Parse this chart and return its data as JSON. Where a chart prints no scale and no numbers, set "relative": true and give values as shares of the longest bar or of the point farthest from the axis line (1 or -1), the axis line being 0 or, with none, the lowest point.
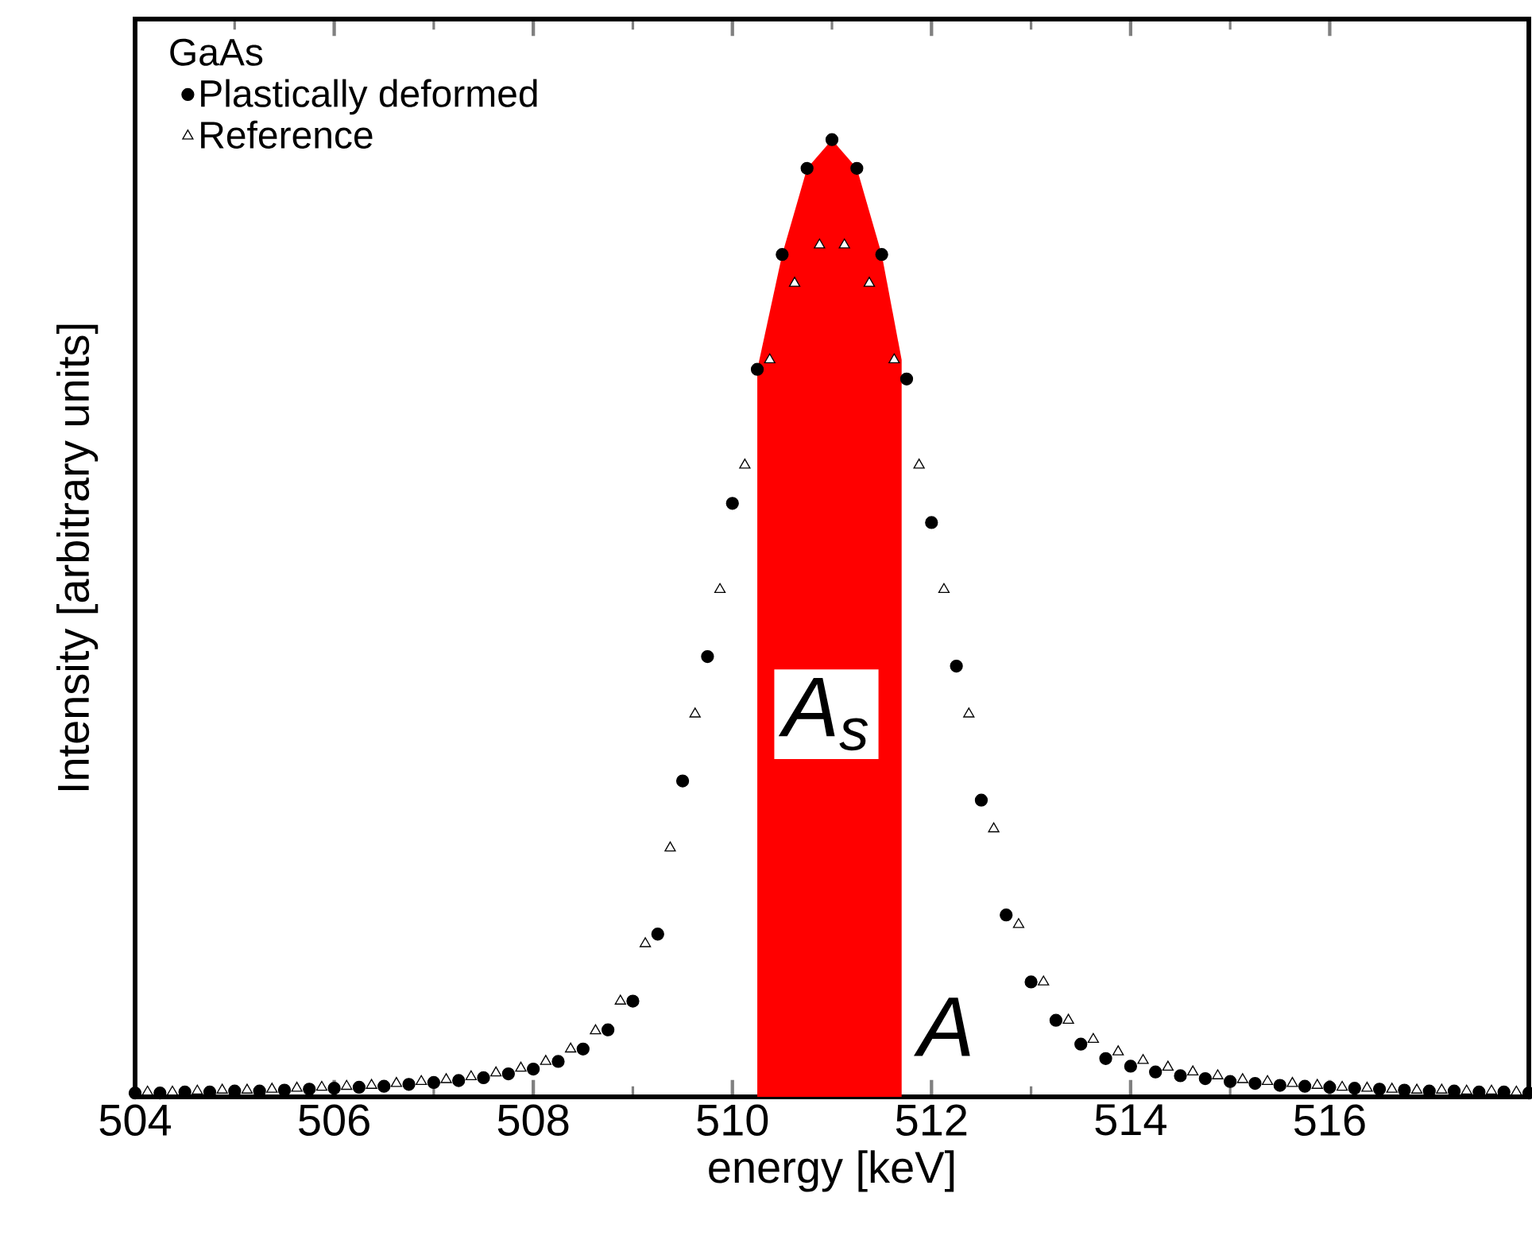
{
  "chart_data": {
    "type": "scatter",
    "xlabel": "energy [keV]",
    "ylabel": "Intensity [arbitrary units]",
    "relative": true,
    "xlim": [
      504,
      518
    ],
    "xticks": [
      504,
      506,
      508,
      510,
      512,
      514,
      516
    ],
    "legend": "top left",
    "legend_title": "GaAs",
    "series": [
      {
        "type": "area",
        "color": "#ff0000",
        "x": [
          510.25,
          510.5,
          510.75,
          511,
          511.25,
          511.5,
          511.7
        ],
        "values": [
          0.76,
          0.88,
          0.97,
          1.0,
          0.97,
          0.88,
          0.77
        ]
      },
      {
        "name": "Plastically deformed",
        "color": "#000000",
        "marker": "circle",
        "x": [
          504,
          504.25,
          504.5,
          504.75,
          505,
          505.25,
          505.5,
          505.75,
          506,
          506.25,
          506.5,
          506.75,
          507,
          507.25,
          507.5,
          507.75,
          508,
          508.25,
          508.5,
          508.75,
          509,
          509.25,
          509.5,
          509.75,
          510,
          510.25,
          510.5,
          510.75,
          511,
          511.25,
          511.5,
          511.75,
          512,
          512.25,
          512.5,
          512.75,
          513,
          513.25,
          513.5,
          513.75,
          514,
          514.25,
          514.5,
          514.75,
          515,
          515.25,
          515.5,
          515.75,
          516,
          516.25,
          516.5,
          516.75,
          517,
          517.25,
          517.5,
          517.75,
          518
        ],
        "values": [
          0.004,
          0.004,
          0.005,
          0.005,
          0.006,
          0.006,
          0.007,
          0.008,
          0.009,
          0.01,
          0.011,
          0.013,
          0.015,
          0.017,
          0.02,
          0.024,
          0.029,
          0.037,
          0.05,
          0.07,
          0.1,
          0.17,
          0.33,
          0.46,
          0.62,
          0.76,
          0.88,
          0.97,
          1.0,
          0.97,
          0.88,
          0.75,
          0.6,
          0.45,
          0.31,
          0.19,
          0.12,
          0.08,
          0.055,
          0.04,
          0.032,
          0.026,
          0.022,
          0.019,
          0.016,
          0.014,
          0.012,
          0.011,
          0.01,
          0.009,
          0.008,
          0.007,
          0.006,
          0.006,
          0.005,
          0.005,
          0.004
        ]
      },
      {
        "name": "Reference",
        "color": "#ffffff",
        "marker": "triangle",
        "x": [
          504.125,
          504.375,
          504.625,
          504.875,
          505.125,
          505.375,
          505.625,
          505.875,
          506.125,
          506.375,
          506.625,
          506.875,
          507.125,
          507.375,
          507.625,
          507.875,
          508.125,
          508.375,
          508.625,
          508.875,
          509.125,
          509.375,
          509.625,
          509.875,
          510.125,
          510.375,
          510.625,
          510.875,
          511.125,
          511.375,
          511.625,
          511.875,
          512.125,
          512.375,
          512.625,
          512.875,
          513.125,
          513.375,
          513.625,
          513.875,
          514.125,
          514.375,
          514.625,
          514.875,
          515.125,
          515.375,
          515.625,
          515.875,
          516.125,
          516.375,
          516.625,
          516.875,
          517.125,
          517.375,
          517.625,
          517.875
        ],
        "values": [
          0.005,
          0.005,
          0.006,
          0.007,
          0.007,
          0.008,
          0.009,
          0.01,
          0.011,
          0.012,
          0.014,
          0.016,
          0.018,
          0.021,
          0.025,
          0.03,
          0.037,
          0.05,
          0.069,
          0.1,
          0.16,
          0.26,
          0.4,
          0.53,
          0.66,
          0.77,
          0.85,
          0.89,
          0.89,
          0.85,
          0.77,
          0.66,
          0.53,
          0.4,
          0.28,
          0.18,
          0.12,
          0.08,
          0.06,
          0.047,
          0.038,
          0.031,
          0.026,
          0.022,
          0.018,
          0.016,
          0.014,
          0.012,
          0.01,
          0.009,
          0.008,
          0.007,
          0.007,
          0.006,
          0.006,
          0.005
        ]
      }
    ],
    "annotations": [
      "*A*$_{s}$",
      "A"
    ]
  }
}
